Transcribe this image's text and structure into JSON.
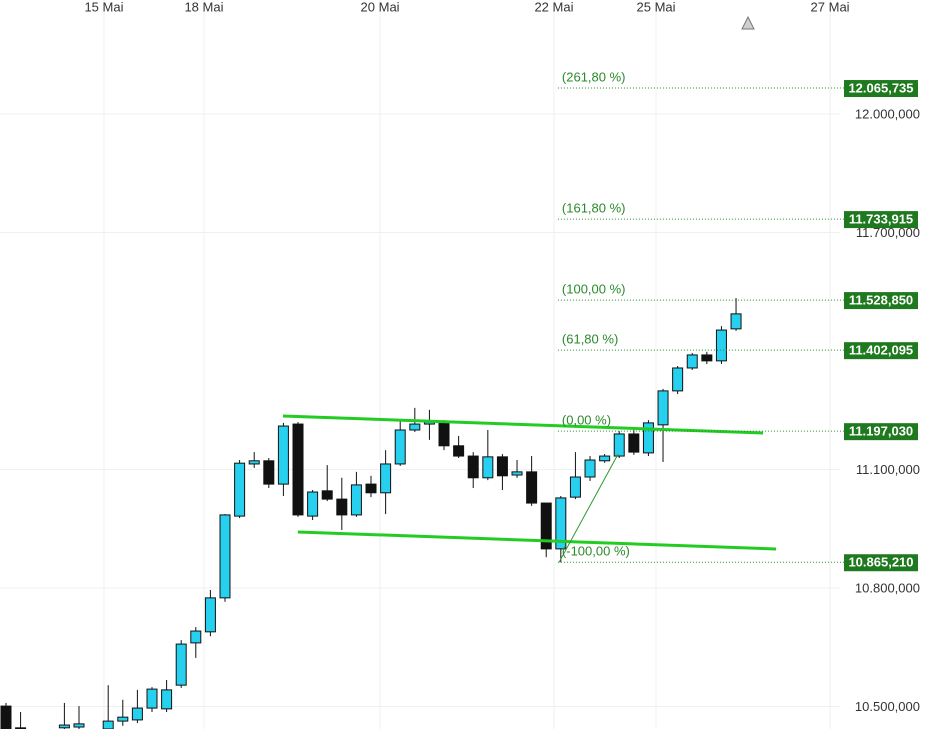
{
  "chart_data": {
    "type": "candlestick",
    "up_color": "#26d0ee",
    "down_color": "#111111",
    "grid": true,
    "x": [
      0,
      1,
      4,
      5,
      7,
      8,
      9,
      10,
      11,
      12,
      13,
      14,
      15,
      16,
      17,
      18,
      19,
      20,
      21,
      22,
      23,
      24,
      25,
      26,
      27,
      28,
      29,
      30,
      31,
      32,
      33,
      34,
      35,
      36,
      37,
      38,
      39,
      40,
      41,
      42,
      43,
      44,
      45,
      46,
      47,
      48,
      49,
      50
    ],
    "open": [
      10501,
      10446,
      10446,
      10448,
      10443,
      10463,
      10466,
      10496,
      10494,
      10554,
      10661,
      10689,
      10775,
      10982,
      11114,
      11122,
      11063,
      11215,
      10982,
      11046,
      11025,
      10985,
      11063,
      11041,
      11114,
      11200,
      11215,
      11220,
      11160,
      11134,
      11079,
      11132,
      11086,
      11094,
      11015,
      10899,
      11030,
      11081,
      11122,
      11134,
      11190,
      11142,
      11213,
      11299,
      11357,
      11390,
      11375,
      11456
    ],
    "high": [
      10509,
      10486,
      10509,
      10501,
      10554,
      10517,
      10542,
      10549,
      10567,
      10668,
      10701,
      10795,
      10987,
      11124,
      11144,
      11129,
      11218,
      11220,
      11048,
      11111,
      11079,
      11094,
      11084,
      11149,
      11225,
      11256,
      11251,
      11225,
      11185,
      11144,
      11200,
      11139,
      11124,
      11134,
      11015,
      11033,
      11144,
      11134,
      11139,
      11197,
      11200,
      11225,
      11304,
      11362,
      11395,
      11398,
      11463,
      11534
    ],
    "low": [
      10443,
      10443,
      10443,
      10443,
      10443,
      10451,
      10458,
      10486,
      10486,
      10547,
      10623,
      10678,
      10765,
      10977,
      11104,
      11053,
      11033,
      10980,
      10972,
      11020,
      10947,
      10980,
      11030,
      10987,
      11109,
      11195,
      11175,
      11149,
      11129,
      11053,
      11073,
      11048,
      11079,
      11008,
      10878,
      10865,
      11025,
      11071,
      11117,
      11129,
      11137,
      11134,
      11119,
      11291,
      11352,
      11367,
      11367,
      11451
    ],
    "close": [
      10443,
      10446,
      10453,
      10456,
      10463,
      10473,
      10496,
      10544,
      10542,
      10658,
      10691,
      10775,
      10985,
      11116,
      11122,
      11063,
      11210,
      10985,
      11043,
      11025,
      10985,
      11061,
      11041,
      11114,
      11200,
      11215,
      11220,
      11160,
      11134,
      11079,
      11132,
      11084,
      11094,
      11015,
      10899,
      11028,
      11081,
      11124,
      11134,
      11190,
      11144,
      11218,
      11299,
      11357,
      11390,
      11375,
      11453,
      11494
    ],
    "xlim": [
      -0.41,
      57.12
    ],
    "ylim": [
      10443,
      12288.6
    ],
    "xticks": [
      {
        "value": 6.71,
        "label": "15 Mai"
      },
      {
        "value": 13.56,
        "label": "18 Mai"
      },
      {
        "value": 25.62,
        "label": "20 Mai"
      },
      {
        "value": 37.53,
        "label": "22 Mai"
      },
      {
        "value": 44.52,
        "label": "25 Mai"
      },
      {
        "value": 56.44,
        "label": "27 Mai"
      }
    ],
    "yticks": [
      {
        "value": 10500,
        "label": "10.500,000"
      },
      {
        "value": 10800,
        "label": "10.800,000"
      },
      {
        "value": 11100,
        "label": "11.100,000"
      },
      {
        "value": 11700,
        "label": "11.700,000"
      },
      {
        "value": 12000,
        "label": "12.000,000"
      }
    ],
    "trendlines": [
      {
        "color": "#22cc22",
        "width": 3,
        "x": [
          18.97,
          51.85
        ],
        "y": [
          11235.5,
          11192.4
        ]
      },
      {
        "color": "#22cc22",
        "width": 3,
        "x": [
          19.99,
          52.74
        ],
        "y": [
          10941.8,
          10898.8
        ]
      },
      {
        "color": "#2a9a2a",
        "width": 1,
        "x": [
          37.88,
          41.92
        ],
        "y": [
          10865,
          11139
        ]
      }
    ],
    "fibonacci": {
      "color": "#2a8a2a",
      "x_start": 37.8,
      "levels": [
        {
          "ratio": "(261,80 %)",
          "value": 12065.735,
          "label": "12.065,735"
        },
        {
          "ratio": "(161,80 %)",
          "value": 11733.915,
          "label": "11.733,915"
        },
        {
          "ratio": "(100,00 %)",
          "value": 11528.85,
          "label": "11.528,850"
        },
        {
          "ratio": "(61,80 %)",
          "value": 11402.095,
          "label": "11.402,095"
        },
        {
          "ratio": "(0,00 %)",
          "value": 11197.03,
          "label": "11.197,030"
        },
        {
          "ratio": "(-100,00 %)",
          "value": 10865.21,
          "label": "10.865,210"
        }
      ]
    }
  }
}
